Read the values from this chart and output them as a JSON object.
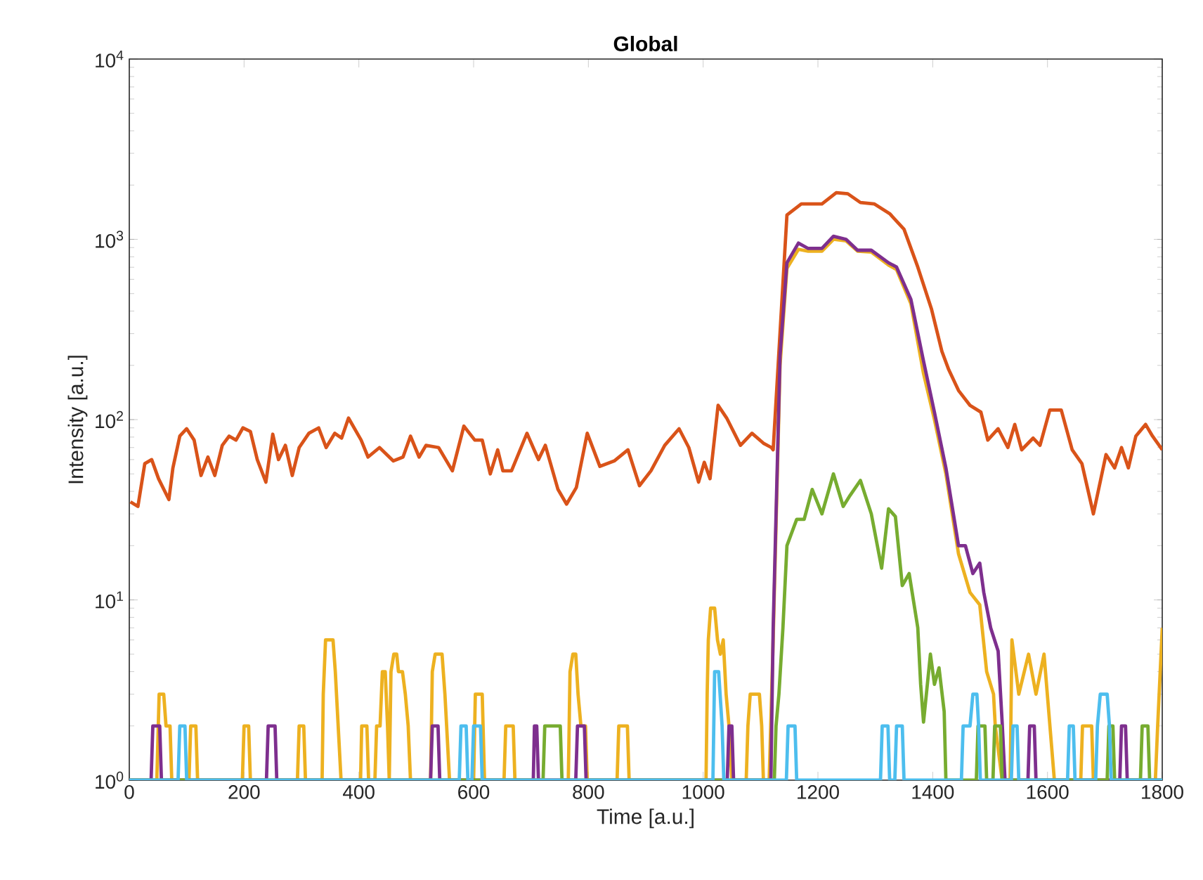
{
  "chart_data": {
    "type": "line",
    "title": "Global",
    "xlabel": "Time [a.u.]",
    "ylabel": "Intensity [a.u.]",
    "log": "y",
    "xlim": [
      0,
      1800
    ],
    "xticks": [
      0,
      200,
      400,
      600,
      800,
      1000,
      1200,
      1400,
      1600,
      1800
    ],
    "ylim": [
      1,
      10000
    ],
    "yticks": [
      {
        "value": 1,
        "label": "10$^{0}$"
      },
      {
        "value": 10,
        "label": "10$^{1}$"
      },
      {
        "value": 100,
        "label": "10$^{2}$"
      },
      {
        "value": 1000,
        "label": "10$^{3}$"
      },
      {
        "value": 10000,
        "label": "10$^{4}$"
      }
    ],
    "series": [
      {
        "color": "#d95319",
        "x": [
          2,
          15,
          27,
          39,
          51,
          69,
          76,
          88,
          100,
          113,
          125,
          137,
          149,
          162,
          174,
          186,
          198,
          211,
          223,
          238,
          250,
          260,
          272,
          284,
          296,
          313,
          330,
          343,
          358,
          370,
          382,
          404,
          416,
          436,
          460,
          477,
          490,
          505,
          517,
          539,
          563,
          583,
          602,
          615,
          629,
          642,
          651,
          666,
          693,
          713,
          725,
          747,
          762,
          779,
          798,
          820,
          845,
          869,
          889,
          909,
          933,
          958,
          975,
          992,
          1002,
          1012,
          1026,
          1041,
          1065,
          1085,
          1105,
          1119,
          1122,
          1146,
          1171,
          1207,
          1232,
          1252,
          1274,
          1298,
          1325,
          1350,
          1374,
          1398,
          1416,
          1428,
          1445,
          1465,
          1484,
          1496,
          1514,
          1531,
          1543,
          1555,
          1575,
          1587,
          1604,
          1624,
          1643,
          1660,
          1680,
          1702,
          1717,
          1729,
          1741,
          1754,
          1771,
          1783,
          1800
        ],
        "values": [
          35,
          33,
          57,
          60,
          47,
          36,
          54,
          81,
          89,
          77,
          49,
          62,
          49,
          72,
          81,
          77,
          90,
          86,
          60,
          45,
          83,
          60,
          72,
          49,
          70,
          84,
          90,
          70,
          84,
          79,
          102,
          77,
          62,
          70,
          59,
          62,
          81,
          62,
          72,
          70,
          52,
          92,
          77,
          77,
          50,
          68,
          52,
          52,
          84,
          60,
          72,
          41,
          34,
          42,
          84,
          55,
          59,
          68,
          43,
          52,
          72,
          89,
          70,
          45,
          58,
          47,
          120,
          102,
          72,
          84,
          74,
          70,
          68,
          1364,
          1573,
          1573,
          1816,
          1790,
          1600,
          1573,
          1388,
          1138,
          702,
          409,
          239,
          189,
          145,
          120,
          110,
          77,
          89,
          70,
          94,
          68,
          79,
          72,
          113,
          113,
          68,
          57,
          30,
          64,
          54,
          70,
          54,
          81,
          94,
          81,
          68
        ]
      },
      {
        "color": "#edb120",
        "x": [
          0,
          48,
          52,
          60,
          64,
          71,
          74,
          104,
          107,
          116,
          119,
          197,
          200,
          208,
          211,
          293,
          296,
          304,
          307,
          336,
          338,
          342,
          355,
          359,
          364,
          369,
          403,
          405,
          414,
          417,
          428,
          431,
          437,
          441,
          446,
          450,
          453,
          456,
          461,
          466,
          469,
          476,
          481,
          486,
          490,
          525,
          528,
          533,
          545,
          550,
          553,
          558,
          600,
          603,
          615,
          619,
          653,
          656,
          669,
          672,
          765,
          768,
          773,
          778,
          782,
          787,
          795,
          798,
          850,
          853,
          868,
          871,
          1005,
          1007,
          1009,
          1013,
          1020,
          1025,
          1030,
          1035,
          1040,
          1045,
          1050,
          1075,
          1078,
          1082,
          1098,
          1102,
          1105,
          1115,
          1122,
          1134,
          1146,
          1166,
          1183,
          1207,
          1227,
          1249,
          1269,
          1293,
          1323,
          1337,
          1362,
          1384,
          1403,
          1423,
          1445,
          1465,
          1482,
          1494,
          1506,
          1509,
          1521,
          1535,
          1538,
          1550,
          1567,
          1580,
          1594,
          1612,
          1658,
          1661,
          1677,
          1680,
          1788,
          1792,
          1800
        ],
        "values": [
          1,
          1,
          3,
          3,
          2,
          2,
          1,
          1,
          2,
          2,
          1,
          1,
          2,
          2,
          1,
          1,
          2,
          2,
          1,
          1,
          3,
          6,
          6,
          4,
          2,
          1,
          1,
          2,
          2,
          1,
          1,
          2,
          2,
          4,
          4,
          2,
          1,
          4,
          5,
          5,
          4,
          4,
          3,
          2,
          1,
          1,
          4,
          5,
          5,
          3,
          2,
          1,
          1,
          3,
          3,
          1,
          1,
          2,
          2,
          1,
          1,
          4,
          5,
          5,
          3,
          2,
          2,
          1,
          1,
          2,
          2,
          1,
          1,
          3,
          6,
          9,
          9,
          6,
          5,
          6,
          3,
          2,
          1,
          1,
          2,
          3,
          3,
          2,
          1,
          1,
          6,
          200,
          690,
          880,
          860,
          860,
          1000,
          980,
          860,
          850,
          720,
          680,
          440,
          180,
          100,
          50,
          18,
          11,
          9.4,
          4,
          3,
          2,
          1,
          1,
          6,
          3,
          5,
          3,
          5,
          1,
          1,
          2,
          2,
          1,
          1,
          2,
          7
        ]
      },
      {
        "color": "#7e2f8e",
        "x": [
          0,
          38,
          41,
          53,
          56,
          239,
          242,
          254,
          257,
          525,
          528,
          538,
          541,
          704,
          706,
          710,
          713,
          778,
          781,
          793,
          796,
          1042,
          1045,
          1050,
          1053,
          1118,
          1122,
          1134,
          1146,
          1166,
          1183,
          1207,
          1227,
          1249,
          1269,
          1293,
          1323,
          1337,
          1362,
          1384,
          1403,
          1423,
          1445,
          1457,
          1470,
          1482,
          1489,
          1501,
          1514,
          1521,
          1526,
          1566,
          1569,
          1577,
          1580,
          1726,
          1729,
          1736,
          1739,
          1800
        ],
        "values": [
          1,
          1,
          2,
          2,
          1,
          1,
          2,
          2,
          1,
          1,
          2,
          2,
          1,
          1,
          2,
          2,
          1,
          1,
          2,
          2,
          1,
          1,
          2,
          2,
          1,
          1,
          7,
          226,
          741,
          953,
          890,
          890,
          1040,
          1000,
          870,
          870,
          741,
          702,
          464,
          211,
          110,
          54,
          20,
          20,
          14,
          16,
          11,
          7,
          5.2,
          2.1,
          1,
          1,
          2,
          2,
          1,
          1,
          2,
          2,
          1,
          1
        ]
      },
      {
        "color": "#77ac30",
        "x": [
          0,
          721,
          724,
          751,
          754,
          1124,
          1127,
          1132,
          1139,
          1146,
          1163,
          1176,
          1190,
          1207,
          1227,
          1244,
          1256,
          1274,
          1293,
          1311,
          1323,
          1335,
          1347,
          1359,
          1374,
          1379,
          1384,
          1396,
          1403,
          1411,
          1420,
          1423,
          1476,
          1479,
          1491,
          1494,
          1505,
          1508,
          1518,
          1521,
          1704,
          1707,
          1714,
          1717,
          1762,
          1765,
          1775,
          1778,
          1800
        ],
        "values": [
          1,
          1,
          2,
          2,
          1,
          1,
          2,
          3,
          7,
          20,
          28,
          28,
          41,
          30,
          50,
          33,
          38,
          46,
          30,
          15,
          32,
          29,
          12,
          14,
          7,
          3.4,
          2.1,
          5,
          3.4,
          4.2,
          2.4,
          1,
          1,
          2,
          2,
          1,
          1,
          2,
          2,
          1,
          1,
          2,
          2,
          1,
          1,
          2,
          2,
          1,
          1
        ]
      },
      {
        "color": "#4dbeee",
        "x": [
          0,
          85,
          88,
          97,
          100,
          575,
          578,
          587,
          590,
          597,
          600,
          612,
          615,
          1017,
          1020,
          1027,
          1033,
          1036,
          1145,
          1148,
          1160,
          1163,
          1309,
          1312,
          1322,
          1325,
          1334,
          1337,
          1347,
          1350,
          1450,
          1453,
          1465,
          1470,
          1477,
          1480,
          1483,
          1537,
          1540,
          1547,
          1550,
          1635,
          1638,
          1645,
          1648,
          1684,
          1687,
          1692,
          1704,
          1708,
          1711,
          1800
        ],
        "values": [
          1,
          1,
          2,
          2,
          1,
          1,
          2,
          2,
          1,
          1,
          2,
          2,
          1,
          1,
          4,
          4,
          2,
          1,
          1,
          2,
          2,
          1,
          1,
          2,
          2,
          1,
          1,
          2,
          2,
          1,
          1,
          2,
          2,
          3,
          3,
          2,
          1,
          1,
          2,
          2,
          1,
          1,
          2,
          2,
          1,
          1,
          2,
          3,
          3,
          2,
          1,
          1
        ]
      }
    ]
  }
}
